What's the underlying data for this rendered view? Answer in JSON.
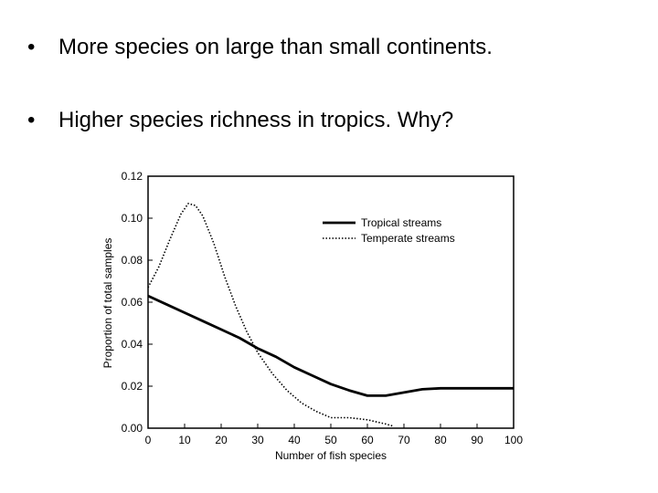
{
  "bullets": [
    {
      "marker": "•",
      "text": "More species on large than small continents."
    },
    {
      "marker": "•",
      "text": "Higher species richness in tropics.  Why?"
    }
  ],
  "chart_data": {
    "type": "line",
    "title": "",
    "xlabel": "Number of fish species",
    "ylabel": "Proportion of total samples",
    "xlim": [
      0,
      100
    ],
    "ylim": [
      0,
      0.12
    ],
    "xticks": [
      0,
      10,
      20,
      30,
      40,
      50,
      60,
      70,
      80,
      90,
      100
    ],
    "yticks": [
      0.0,
      0.02,
      0.04,
      0.06,
      0.08,
      0.1,
      0.12
    ],
    "ytick_labels": [
      "0.00",
      "0.02",
      "0.04",
      "0.06",
      "0.08",
      "0.10",
      "0.12"
    ],
    "grid": false,
    "legend_position": "upper-right",
    "series": [
      {
        "name": "Tropical streams",
        "style": "solid",
        "color": "#000000",
        "x": [
          0,
          5,
          10,
          15,
          20,
          25,
          30,
          35,
          40,
          45,
          50,
          55,
          60,
          65,
          70,
          75,
          80,
          85,
          90,
          95,
          100
        ],
        "y": [
          0.063,
          0.059,
          0.055,
          0.051,
          0.047,
          0.043,
          0.038,
          0.034,
          0.029,
          0.025,
          0.021,
          0.018,
          0.0155,
          0.0155,
          0.017,
          0.0185,
          0.019,
          0.019,
          0.019,
          0.019,
          0.019
        ]
      },
      {
        "name": "Temperate streams",
        "style": "dotted",
        "color": "#000000",
        "x": [
          0,
          3,
          6,
          9,
          11,
          13,
          15,
          18,
          21,
          24,
          27,
          30,
          34,
          38,
          42,
          46,
          50,
          55,
          60,
          65,
          67
        ],
        "y": [
          0.067,
          0.077,
          0.09,
          0.102,
          0.107,
          0.106,
          0.101,
          0.088,
          0.072,
          0.058,
          0.046,
          0.036,
          0.026,
          0.018,
          0.012,
          0.008,
          0.005,
          0.005,
          0.004,
          0.002,
          0.001
        ]
      }
    ]
  }
}
